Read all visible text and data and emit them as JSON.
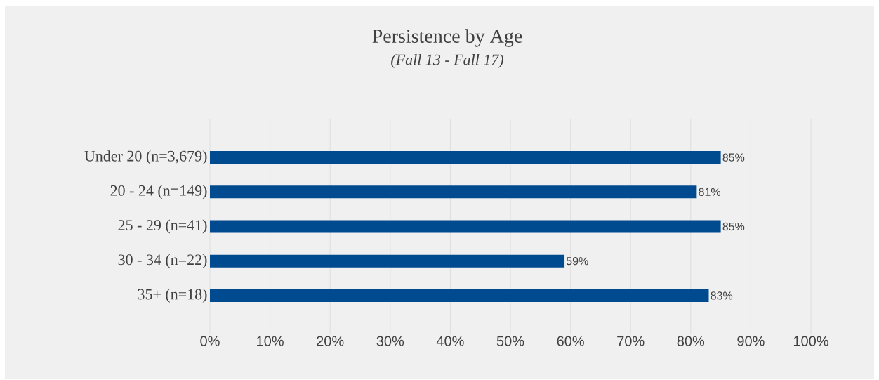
{
  "chart_data": {
    "type": "bar",
    "orientation": "horizontal",
    "title": "Persistence by Age",
    "subtitle": "(Fall 13 - Fall 17)",
    "categories": [
      "Under 20 (n=3,679)",
      "20 - 24 (n=149)",
      "25 - 29 (n=41)",
      "30 - 34 (n=22)",
      "35+ (n=18)"
    ],
    "values": [
      85,
      81,
      85,
      59,
      83
    ],
    "value_labels": [
      "85%",
      "81%",
      "85%",
      "59%",
      "83%"
    ],
    "color": "#004a8f",
    "xlim": [
      0,
      100
    ],
    "xticks": [
      {
        "value": 0,
        "label": "0%"
      },
      {
        "value": 10,
        "label": "10%"
      },
      {
        "value": 20,
        "label": "20%"
      },
      {
        "value": 30,
        "label": "30%"
      },
      {
        "value": 40,
        "label": "40%"
      },
      {
        "value": 50,
        "label": "50%"
      },
      {
        "value": 60,
        "label": "60%"
      },
      {
        "value": 70,
        "label": "70%"
      },
      {
        "value": 80,
        "label": "80%"
      },
      {
        "value": 90,
        "label": "90%"
      },
      {
        "value": 100,
        "label": "100%"
      }
    ],
    "grid": "x"
  }
}
